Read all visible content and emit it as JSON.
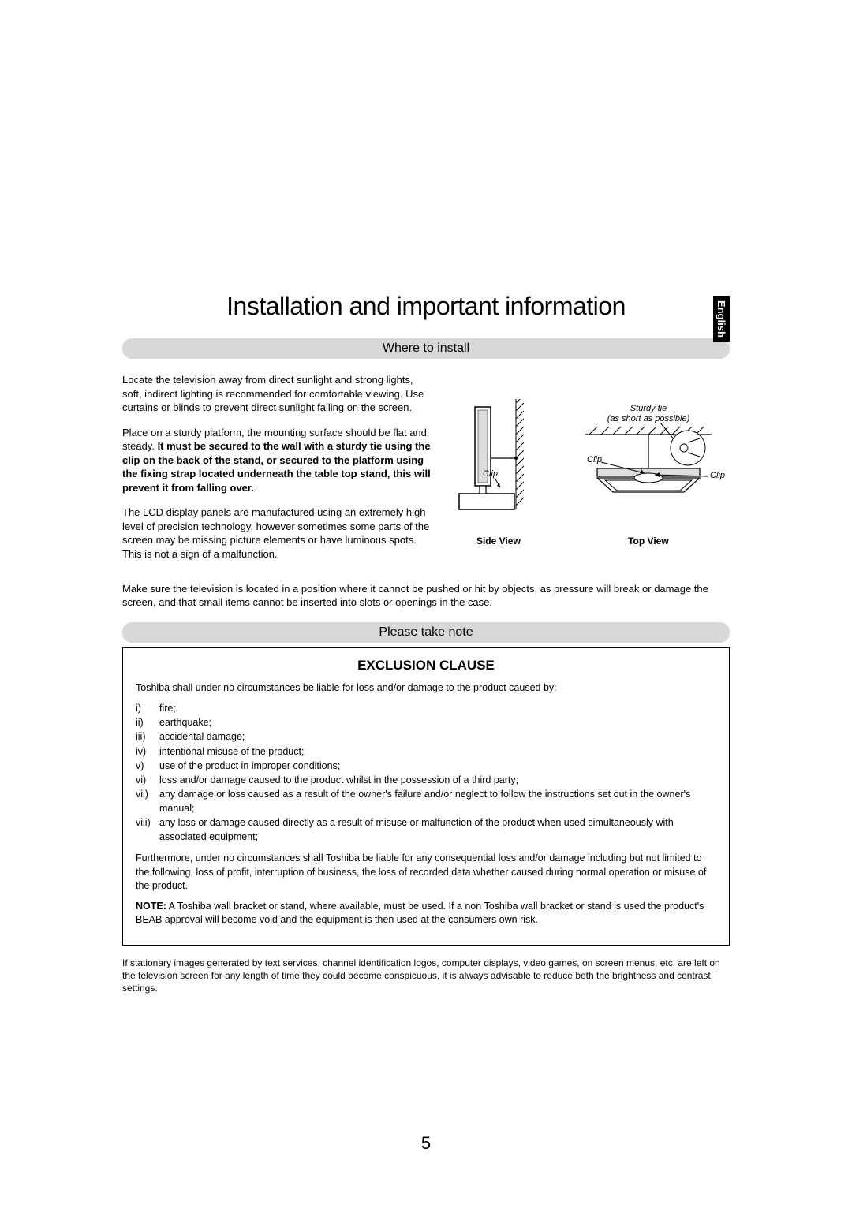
{
  "language_tab": "English",
  "title": "Installation and important information",
  "section1": {
    "header": "Where to install",
    "p1": "Locate the television away from direct sunlight and strong lights, soft, indirect lighting is recommended for comfortable viewing. Use curtains or blinds to prevent direct sunlight falling on the screen.",
    "p2_a": "Place on a sturdy platform, the mounting surface should be flat and steady. ",
    "p2_b": "It must be secured to the wall with a sturdy tie using the clip on the back of the stand, or secured to the platform using the fixing strap located underneath the table top stand, this will prevent it from falling over.",
    "p3": "The LCD display panels are manufactured using an extremely high level of precision technology, however sometimes some parts of the screen may be missing picture elements or have luminous spots. This is not a sign of a malfunction.",
    "p4": "Make sure the television is located in a position where it cannot be pushed or hit by objects, as pressure will break or damage the screen, and that small items cannot be inserted into slots or openings in the case.",
    "diagram": {
      "side_view_label": "Side View",
      "top_view_label": "Top View",
      "clip_label": "Clip",
      "sturdy_tie_label_1": "Sturdy tie",
      "sturdy_tie_label_2": "(as short as possible)"
    }
  },
  "section2": {
    "header": "Please take note",
    "exclusion_title": "EXCLUSION CLAUSE",
    "intro": "Toshiba shall under no circumstances be liable for loss and/or damage to the product caused by:",
    "items": [
      {
        "n": "i)",
        "t": "fire;"
      },
      {
        "n": "ii)",
        "t": "earthquake;"
      },
      {
        "n": "iii)",
        "t": "accidental damage;"
      },
      {
        "n": "iv)",
        "t": "intentional misuse of the product;"
      },
      {
        "n": "v)",
        "t": "use of the product in improper conditions;"
      },
      {
        "n": "vi)",
        "t": "loss and/or damage caused to the product whilst in the possession of a third party;"
      },
      {
        "n": "vii)",
        "t": "any damage or loss caused as a result of the owner's failure and/or neglect to follow the instructions set out in the owner's manual;"
      },
      {
        "n": "viii)",
        "t": "any loss or damage caused directly as a result of misuse or malfunction of the product when used simultaneously with associated equipment;"
      }
    ],
    "furthermore": "Furthermore, under no circumstances shall Toshiba be liable for any consequential loss and/or damage including but not limited to the following, loss of profit, interruption of business, the loss of recorded data whether caused during normal operation or misuse of the product.",
    "note_label": "NOTE:",
    "note_body": " A Toshiba wall bracket or stand, where available, must be used. If a non Toshiba wall bracket or stand is used the product's BEAB approval will become void and the equipment is then used at the consumers own risk.",
    "footnote": "If stationary images generated by text services, channel identification logos, computer displays, video games, on screen menus, etc. are left on the television screen for any length of time they could become conspicuous, it is always advisable to reduce both the brightness and contrast settings."
  },
  "page_number": "5"
}
